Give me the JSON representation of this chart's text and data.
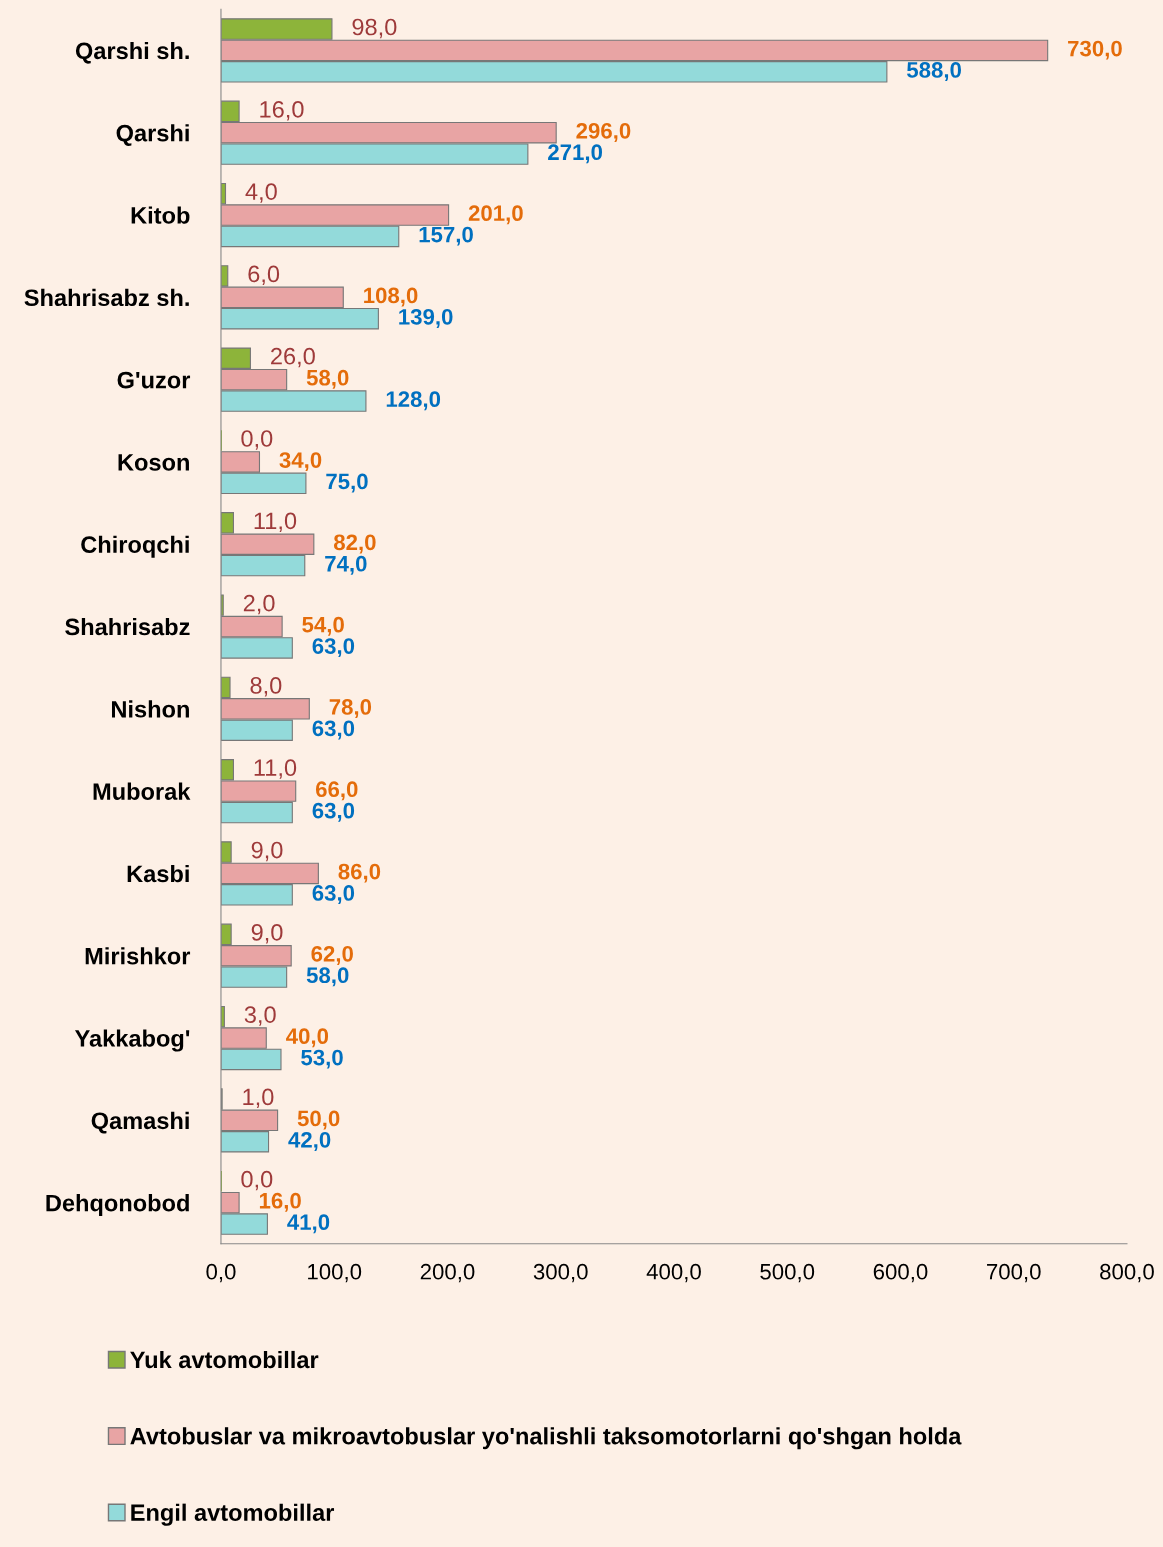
{
  "chart_data": {
    "type": "bar",
    "orientation": "horizontal",
    "categories": [
      "Qarshi sh.",
      "Qarshi",
      "Kitob",
      "Shahrisabz sh.",
      "G'uzor",
      "Koson",
      "Chiroqchi",
      "Shahrisabz",
      "Nishon",
      "Muborak",
      "Kasbi",
      "Mirishkor",
      "Yakkabog'",
      "Qamashi",
      "Dehqonobod"
    ],
    "series": [
      {
        "name": "Yuk avtomobillar",
        "color": "#8db43a",
        "values": [
          98,
          16,
          4,
          6,
          26,
          0,
          11,
          2,
          8,
          11,
          9,
          9,
          3,
          1,
          0
        ],
        "value_labels": [
          "98,0",
          "16,0",
          "4,0",
          "6,0",
          "26,0",
          "0,0",
          "11,0",
          "2,0",
          "8,0",
          "11,0",
          "9,0",
          "9,0",
          "3,0",
          "1,0",
          "0,0"
        ]
      },
      {
        "name": "Avtobuslar va mikroavtobuslar yo'nalishli taksomotorlarni qo'shgan holda",
        "color": "#e8a4a4",
        "values": [
          730,
          296,
          201,
          108,
          58,
          34,
          82,
          54,
          78,
          66,
          86,
          62,
          40,
          50,
          16
        ],
        "value_labels": [
          "730,0",
          "296,0",
          "201,0",
          "108,0",
          "58,0",
          "34,0",
          "82,0",
          "54,0",
          "78,0",
          "66,0",
          "86,0",
          "62,0",
          "40,0",
          "50,0",
          "16,0"
        ]
      },
      {
        "name": "Engil avtomobillar",
        "color": "#93dada",
        "values": [
          588,
          271,
          157,
          139,
          128,
          75,
          74,
          63,
          63,
          63,
          63,
          58,
          53,
          42,
          41
        ],
        "value_labels": [
          "588,0",
          "271,0",
          "157,0",
          "139,0",
          "128,0",
          "75,0",
          "74,0",
          "63,0",
          "63,0",
          "63,0",
          "63,0",
          "58,0",
          "53,0",
          "42,0",
          "41,0"
        ]
      }
    ],
    "xlim": [
      0,
      800
    ],
    "xticks": [
      {
        "value": 0,
        "label": "0,0"
      },
      {
        "value": 100,
        "label": "100,0"
      },
      {
        "value": 200,
        "label": "200,0"
      },
      {
        "value": 300,
        "label": "300,0"
      },
      {
        "value": 400,
        "label": "400,0"
      },
      {
        "value": 500,
        "label": "500,0"
      },
      {
        "value": 600,
        "label": "600,0"
      },
      {
        "value": 700,
        "label": "700,0"
      },
      {
        "value": 800,
        "label": "800,0"
      }
    ],
    "grid": false,
    "legend": "bottom"
  }
}
